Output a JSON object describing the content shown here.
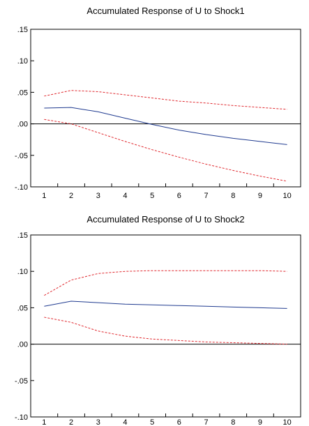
{
  "chart_data": [
    {
      "type": "line",
      "title": "Accumulated Response of U to Shock1",
      "x": [
        1,
        2,
        3,
        4,
        5,
        6,
        7,
        8,
        9,
        10
      ],
      "y_ticks": [
        ".15",
        ".10",
        ".05",
        ".00",
        "-.05",
        "-.10"
      ],
      "y_tick_values": [
        0.15,
        0.1,
        0.05,
        0.0,
        -0.05,
        -0.1
      ],
      "ylim": [
        -0.1,
        0.15
      ],
      "xlim": [
        0.5,
        10.5
      ],
      "zero_line": true,
      "grid": false,
      "series": [
        {
          "style": "solid",
          "color": "#1f3a8f",
          "values": [
            0.025,
            0.026,
            0.019,
            0.009,
            -0.001,
            -0.01,
            -0.017,
            -0.023,
            -0.028,
            -0.033
          ]
        },
        {
          "style": "dashed",
          "color": "#e0282e",
          "values": [
            0.044,
            0.053,
            0.051,
            0.046,
            0.041,
            0.036,
            0.033,
            0.029,
            0.026,
            0.023
          ]
        },
        {
          "style": "dashed",
          "color": "#e0282e",
          "values": [
            0.007,
            0.0,
            -0.014,
            -0.028,
            -0.041,
            -0.053,
            -0.064,
            -0.074,
            -0.083,
            -0.091
          ]
        }
      ]
    },
    {
      "type": "line",
      "title": "Accumulated Response of U to Shock2",
      "x": [
        1,
        2,
        3,
        4,
        5,
        6,
        7,
        8,
        9,
        10
      ],
      "y_ticks": [
        ".15",
        ".10",
        ".05",
        ".00",
        "-.05",
        "-.10"
      ],
      "y_tick_values": [
        0.15,
        0.1,
        0.05,
        0.0,
        -0.05,
        -0.1
      ],
      "ylim": [
        -0.1,
        0.15
      ],
      "xlim": [
        0.5,
        10.5
      ],
      "zero_line": true,
      "grid": false,
      "series": [
        {
          "style": "solid",
          "color": "#1f3a8f",
          "values": [
            0.052,
            0.059,
            0.057,
            0.055,
            0.054,
            0.053,
            0.052,
            0.051,
            0.05,
            0.049
          ]
        },
        {
          "style": "dashed",
          "color": "#e0282e",
          "values": [
            0.067,
            0.088,
            0.097,
            0.1,
            0.101,
            0.101,
            0.101,
            0.101,
            0.101,
            0.1
          ]
        },
        {
          "style": "dashed",
          "color": "#e0282e",
          "values": [
            0.037,
            0.03,
            0.018,
            0.011,
            0.007,
            0.005,
            0.003,
            0.002,
            0.001,
            0.0
          ]
        }
      ]
    }
  ]
}
